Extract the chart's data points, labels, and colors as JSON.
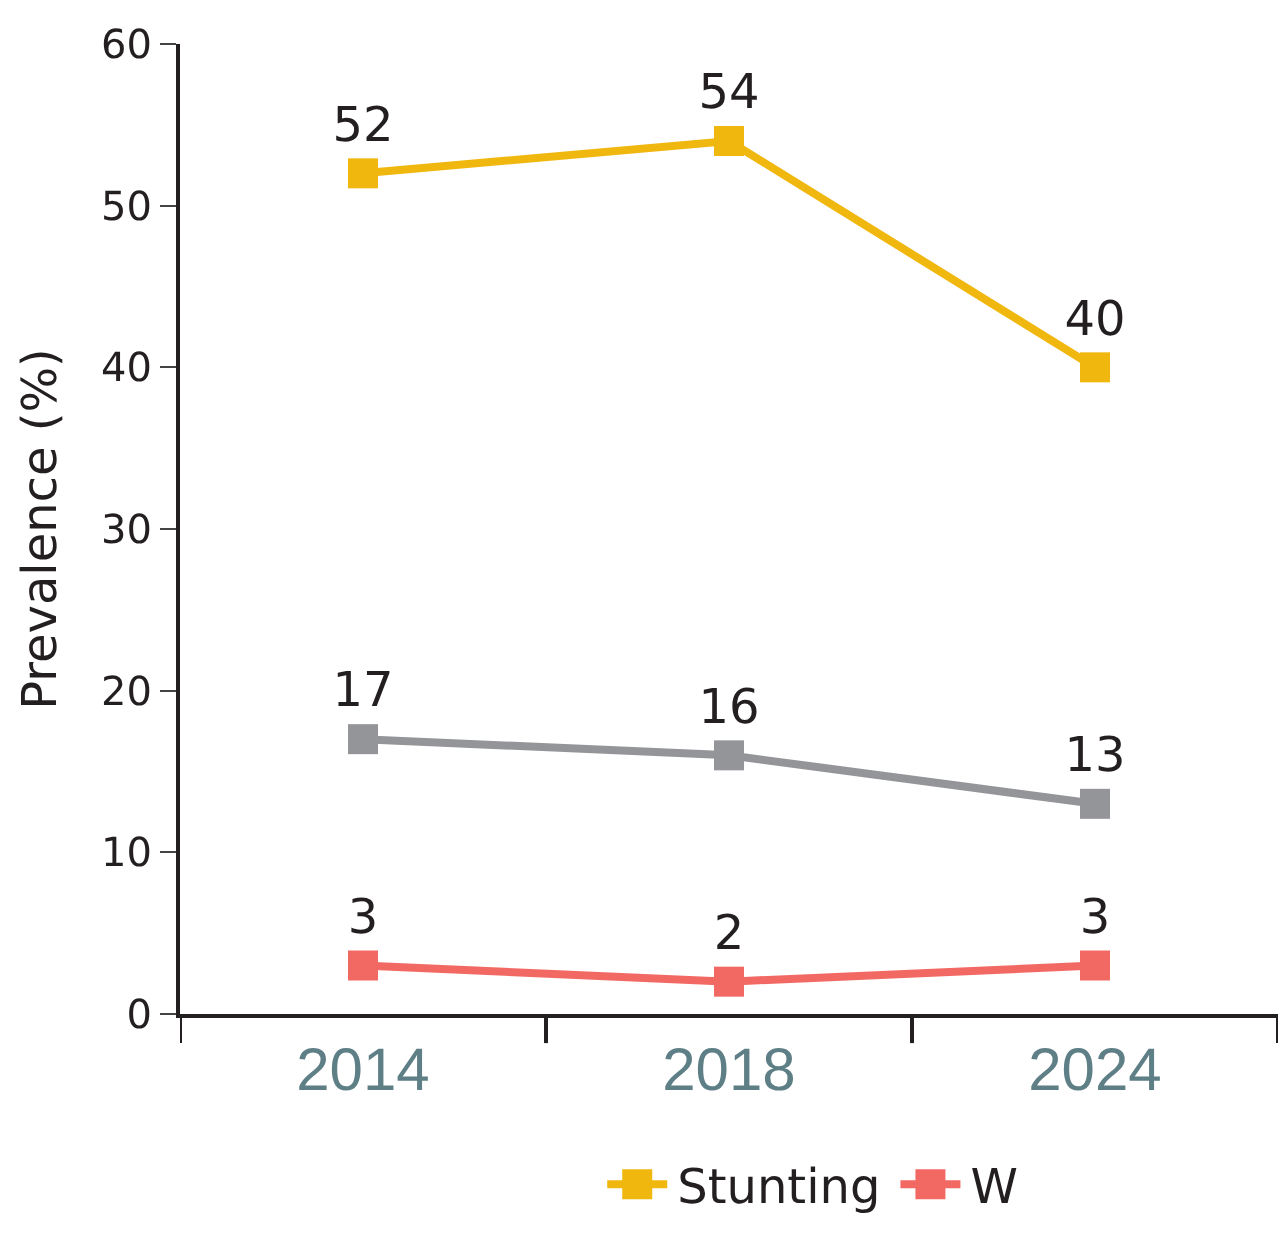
{
  "chart_data": {
    "type": "line",
    "ylabel": "Prevalence (%)",
    "categories": [
      "2014",
      "2018",
      "2024"
    ],
    "series": [
      {
        "name": "Stunting",
        "color": "#f0b70f",
        "values": [
          52,
          54,
          40
        ]
      },
      {
        "color": "#939598",
        "values": [
          17,
          16,
          13
        ]
      },
      {
        "name": "W",
        "color": "#f26963",
        "values": [
          3,
          2,
          3
        ]
      }
    ],
    "ylim": [
      0,
      60
    ],
    "yticks": [
      0,
      10,
      20,
      30,
      40,
      50,
      60
    ],
    "marker": "square",
    "data_labels": true,
    "legend": "bottom"
  }
}
